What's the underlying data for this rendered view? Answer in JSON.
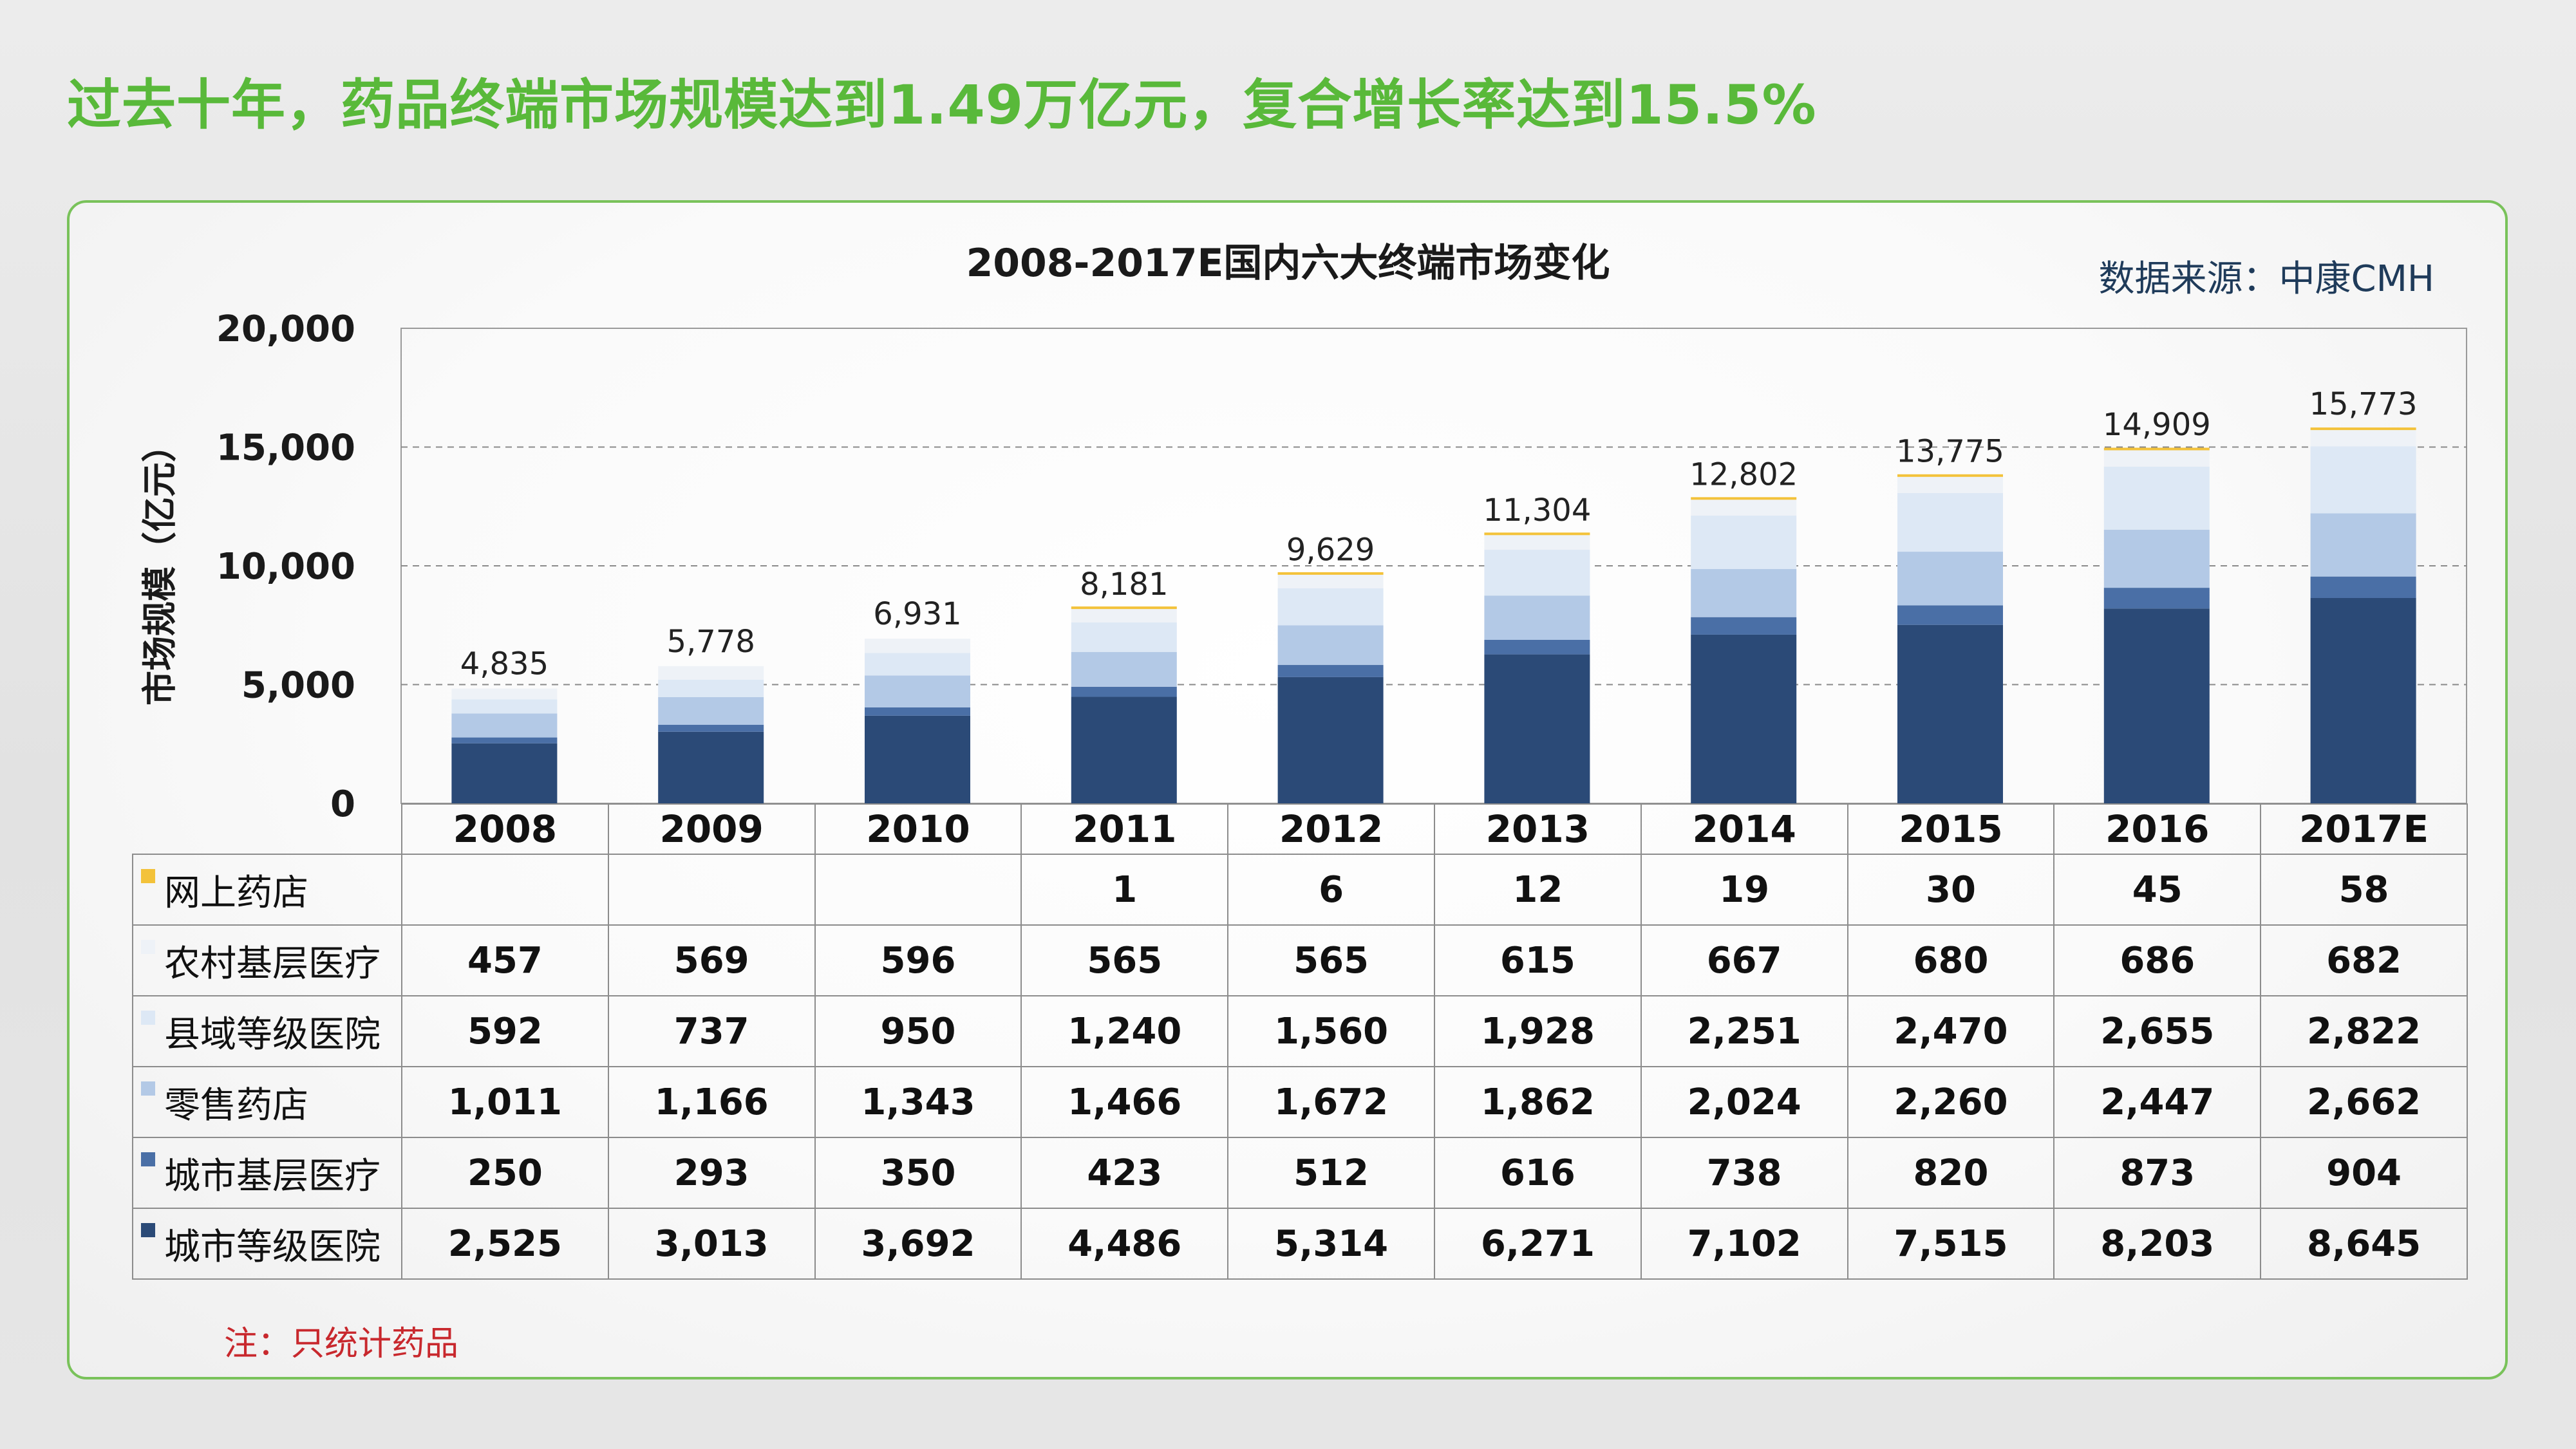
{
  "headline": "过去十年，药品终端市场规模达到1.49万亿元，复合增长率达到15.5%",
  "source": "数据来源：中康CMH",
  "note": "注：只统计药品",
  "colors": {
    "headline": "#59b93a",
    "online_pharmacy": "#f3c23a",
    "rural_primary": "#eef2f7",
    "county_hospital": "#dde8f5",
    "retail_pharmacy": "#b3c9e6",
    "urban_primary": "#4a6fa6",
    "urban_hospital": "#2b4a77"
  },
  "chart_data": {
    "type": "bar",
    "stacked": true,
    "title": "2008-2017E国内六大终端市场变化",
    "ylabel": "市场规模（亿元）",
    "xlabel": "",
    "ylim": [
      0,
      20000
    ],
    "yticks": [
      "0",
      "5,000",
      "10,000",
      "15,000",
      "20,000"
    ],
    "grid": true,
    "categories": [
      "2008",
      "2009",
      "2010",
      "2011",
      "2012",
      "2013",
      "2014",
      "2015",
      "2016",
      "2017E"
    ],
    "totals": [
      "4,835",
      "5,778",
      "6,931",
      "8,181",
      "9,629",
      "11,304",
      "12,802",
      "13,775",
      "14,909",
      "15,773"
    ],
    "series": [
      {
        "name": "城市等级医院",
        "color": "#2b4a77",
        "values": [
          2525,
          3013,
          3692,
          4486,
          5314,
          6271,
          7102,
          7515,
          8203,
          8645
        ],
        "labels": [
          "2,525",
          "3,013",
          "3,692",
          "4,486",
          "5,314",
          "6,271",
          "7,102",
          "7,515",
          "8,203",
          "8,645"
        ]
      },
      {
        "name": "城市基层医疗",
        "color": "#4a6fa6",
        "values": [
          250,
          293,
          350,
          423,
          512,
          616,
          738,
          820,
          873,
          904
        ],
        "labels": [
          "250",
          "293",
          "350",
          "423",
          "512",
          "616",
          "738",
          "820",
          "873",
          "904"
        ]
      },
      {
        "name": "零售药店",
        "color": "#b3c9e6",
        "values": [
          1011,
          1166,
          1343,
          1466,
          1672,
          1862,
          2024,
          2260,
          2447,
          2662
        ],
        "labels": [
          "1,011",
          "1,166",
          "1,343",
          "1,466",
          "1,672",
          "1,862",
          "2,024",
          "2,260",
          "2,447",
          "2,662"
        ]
      },
      {
        "name": "县域等级医院",
        "color": "#dde8f5",
        "values": [
          592,
          737,
          950,
          1240,
          1560,
          1928,
          2251,
          2470,
          2655,
          2822
        ],
        "labels": [
          "592",
          "737",
          "950",
          "1,240",
          "1,560",
          "1,928",
          "2,251",
          "2,470",
          "2,655",
          "2,822"
        ]
      },
      {
        "name": "农村基层医疗",
        "color": "#eef2f7",
        "values": [
          457,
          569,
          596,
          565,
          565,
          615,
          667,
          680,
          686,
          682
        ],
        "labels": [
          "457",
          "569",
          "596",
          "565",
          "565",
          "615",
          "667",
          "680",
          "686",
          "682"
        ]
      },
      {
        "name": "网上药店",
        "color": "#f3c23a",
        "values": [
          null,
          null,
          null,
          1,
          6,
          12,
          19,
          30,
          45,
          58
        ],
        "labels": [
          "",
          "",
          "",
          "1",
          "6",
          "12",
          "19",
          "30",
          "45",
          "58"
        ]
      }
    ],
    "table_row_order": [
      "网上药店",
      "农村基层医疗",
      "县域等级医院",
      "零售药店",
      "城市基层医疗",
      "城市等级医院"
    ]
  }
}
